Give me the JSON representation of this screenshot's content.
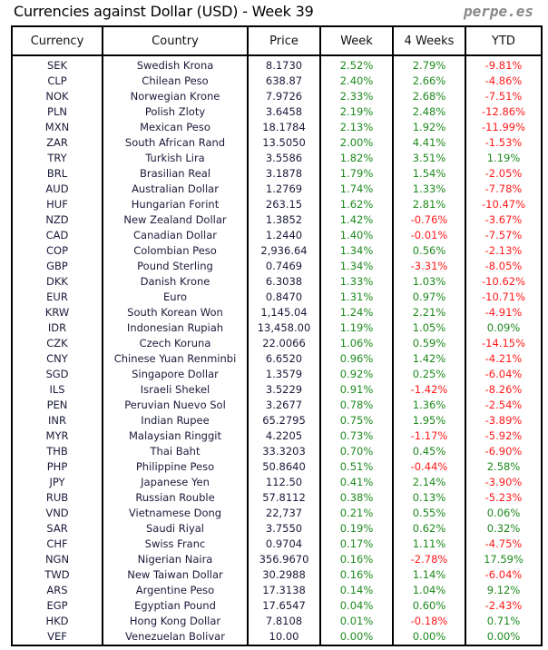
{
  "title": "Currencies against Dollar (USD) - Week 39",
  "brand": "perpe.es",
  "colors": {
    "positive": "#1e8a1e",
    "negative": "#ff1a1a"
  },
  "headers": [
    "Currency",
    "Country",
    "Price",
    "Week",
    "4 Weeks",
    "YTD"
  ],
  "rows": [
    [
      "SEK",
      "Swedish Krona",
      "8.1730",
      "2.52%",
      "2.79%",
      "-9.81%"
    ],
    [
      "CLP",
      "Chilean Peso",
      "638.87",
      "2.40%",
      "2.66%",
      "-4.86%"
    ],
    [
      "NOK",
      "Norwegian Krone",
      "7.9726",
      "2.33%",
      "2.68%",
      "-7.51%"
    ],
    [
      "PLN",
      "Polish Zloty",
      "3.6458",
      "2.19%",
      "2.48%",
      "-12.86%"
    ],
    [
      "MXN",
      "Mexican Peso",
      "18.1784",
      "2.13%",
      "1.92%",
      "-11.99%"
    ],
    [
      "ZAR",
      "South African Rand",
      "13.5050",
      "2.00%",
      "4.41%",
      "-1.53%"
    ],
    [
      "TRY",
      "Turkish Lira",
      "3.5586",
      "1.82%",
      "3.51%",
      "1.19%"
    ],
    [
      "BRL",
      "Brasilian Real",
      "3.1878",
      "1.79%",
      "1.54%",
      "-2.05%"
    ],
    [
      "AUD",
      "Australian Dollar",
      "1.2769",
      "1.74%",
      "1.33%",
      "-7.78%"
    ],
    [
      "HUF",
      "Hungarian Forint",
      "263.15",
      "1.62%",
      "2.81%",
      "-10.47%"
    ],
    [
      "NZD",
      "New Zealand Dollar",
      "1.3852",
      "1.42%",
      "-0.76%",
      "-3.67%"
    ],
    [
      "CAD",
      "Canadian Dollar",
      "1.2440",
      "1.40%",
      "-0.01%",
      "-7.57%"
    ],
    [
      "COP",
      "Colombian Peso",
      "2,936.64",
      "1.34%",
      "0.56%",
      "-2.13%"
    ],
    [
      "GBP",
      "Pound Sterling",
      "0.7469",
      "1.34%",
      "-3.31%",
      "-8.05%"
    ],
    [
      "DKK",
      "Danish Krone",
      "6.3038",
      "1.33%",
      "1.03%",
      "-10.62%"
    ],
    [
      "EUR",
      "Euro",
      "0.8470",
      "1.31%",
      "0.97%",
      "-10.71%"
    ],
    [
      "KRW",
      "South Korean Won",
      "1,145.04",
      "1.24%",
      "2.21%",
      "-4.91%"
    ],
    [
      "IDR",
      "Indonesian Rupiah",
      "13,458.00",
      "1.19%",
      "1.05%",
      "0.09%"
    ],
    [
      "CZK",
      "Czech Koruna",
      "22.0066",
      "1.06%",
      "0.59%",
      "-14.15%"
    ],
    [
      "CNY",
      "Chinese Yuan Renminbi",
      "6.6520",
      "0.96%",
      "1.42%",
      "-4.21%"
    ],
    [
      "SGD",
      "Singapore Dollar",
      "1.3579",
      "0.92%",
      "0.25%",
      "-6.04%"
    ],
    [
      "ILS",
      "Israeli Shekel",
      "3.5229",
      "0.91%",
      "-1.42%",
      "-8.26%"
    ],
    [
      "PEN",
      "Peruvian Nuevo Sol",
      "3.2677",
      "0.78%",
      "1.36%",
      "-2.54%"
    ],
    [
      "INR",
      "Indian Rupee",
      "65.2795",
      "0.75%",
      "1.95%",
      "-3.89%"
    ],
    [
      "MYR",
      "Malaysian Ringgit",
      "4.2205",
      "0.73%",
      "-1.17%",
      "-5.92%"
    ],
    [
      "THB",
      "Thai Baht",
      "33.3203",
      "0.70%",
      "0.45%",
      "-6.90%"
    ],
    [
      "PHP",
      "Philippine Peso",
      "50.8640",
      "0.51%",
      "-0.44%",
      "2.58%"
    ],
    [
      "JPY",
      "Japanese Yen",
      "112.50",
      "0.41%",
      "2.14%",
      "-3.90%"
    ],
    [
      "RUB",
      "Russian Rouble",
      "57.8112",
      "0.38%",
      "0.13%",
      "-5.23%"
    ],
    [
      "VND",
      "Vietnamese Dong",
      "22,737",
      "0.21%",
      "0.55%",
      "0.06%"
    ],
    [
      "SAR",
      "Saudi Riyal",
      "3.7550",
      "0.19%",
      "0.62%",
      "0.32%"
    ],
    [
      "CHF",
      "Swiss Franc",
      "0.9704",
      "0.17%",
      "1.11%",
      "-4.75%"
    ],
    [
      "NGN",
      "Nigerian Naira",
      "356.9670",
      "0.16%",
      "-2.78%",
      "17.59%"
    ],
    [
      "TWD",
      "New Taiwan Dollar",
      "30.2988",
      "0.16%",
      "1.14%",
      "-6.04%"
    ],
    [
      "ARS",
      "Argentine Peso",
      "17.3138",
      "0.14%",
      "1.04%",
      "9.12%"
    ],
    [
      "EGP",
      "Egyptian Pound",
      "17.6547",
      "0.04%",
      "0.60%",
      "-2.43%"
    ],
    [
      "HKD",
      "Hong Kong Dollar",
      "7.8108",
      "0.01%",
      "-0.18%",
      "0.71%"
    ],
    [
      "VEF",
      "Venezuelan Bolivar",
      "10.00",
      "0.00%",
      "0.00%",
      "0.00%"
    ]
  ]
}
